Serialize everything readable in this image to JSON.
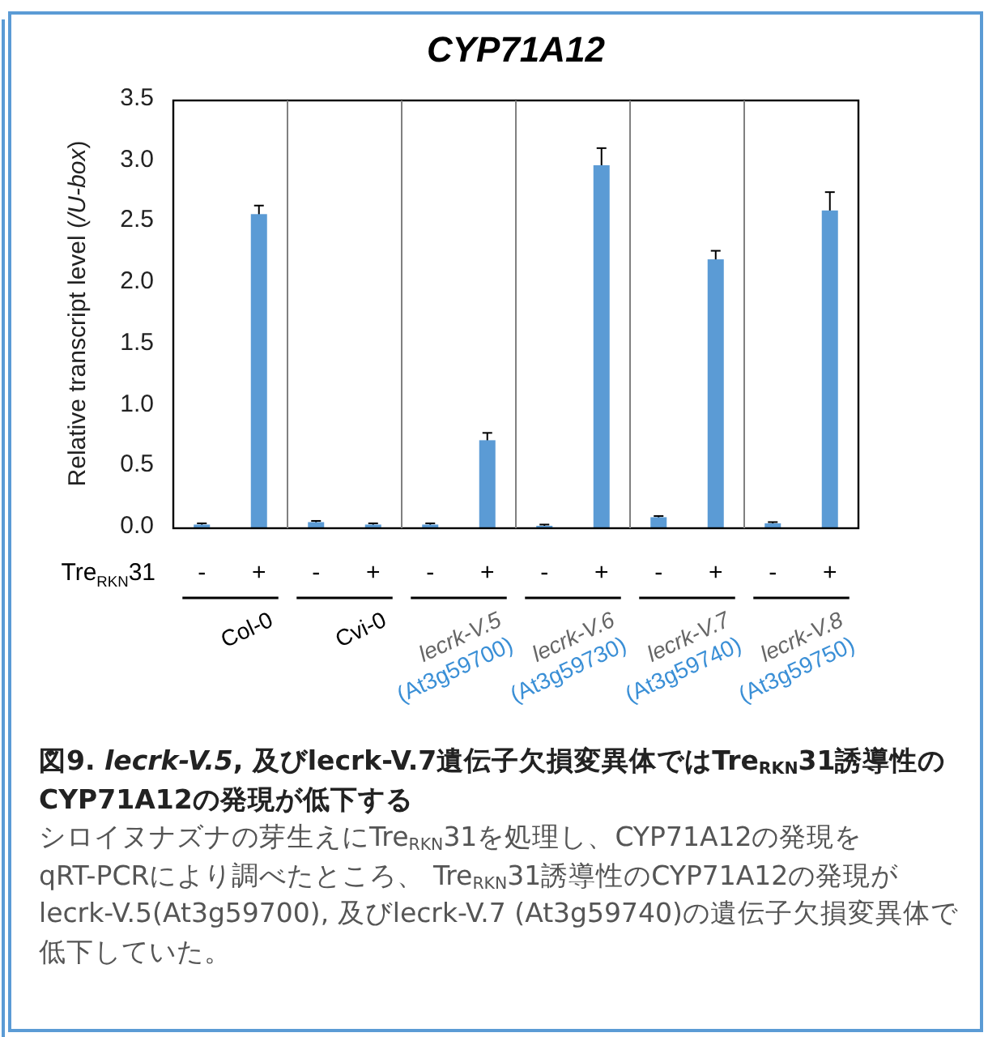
{
  "chart_data": {
    "type": "bar",
    "title": "CYP71A12",
    "ylabel": "Relative transcript level  (*/U-box*)",
    "xlabel": "Tre$_{RKN}$31",
    "categories": [
      "-",
      "+",
      "-",
      "+",
      "-",
      "+",
      "-",
      "+",
      "-",
      "+",
      "-",
      "+"
    ],
    "values": [
      0.03,
      2.57,
      0.05,
      0.03,
      0.03,
      0.72,
      0.02,
      2.97,
      0.09,
      2.2,
      0.04,
      2.6
    ],
    "errors": [
      0.01,
      0.07,
      0.01,
      0.01,
      0.01,
      0.06,
      0.01,
      0.14,
      0.01,
      0.07,
      0.01,
      0.15
    ],
    "color": "#5b9bd5",
    "ylim": [
      0,
      3.5
    ],
    "yticks": [
      {
        "value": 0,
        "label": "0.0"
      },
      0.5,
      {
        "value": 1,
        "label": "1.0"
      },
      1.5,
      {
        "value": 2,
        "label": "2.0"
      },
      2.5,
      {
        "value": 3,
        "label": "3.0"
      },
      3.5
    ],
    "annotations": [
      "Col-0",
      "Cvi-0",
      "*lecrk-V.5* (At3g59700)",
      "*lecrk-V.6* (At3g59730)",
      "*lecrk-V.7* (At3g59740)",
      "*lecrk-V.8* (At3g59750)",
      "図9. *lecrk-V.5*, 及びlecrk-V.7遺伝子欠損変異体ではTre$_{RKN}$31誘導性のCYP71A12の発現が低下する",
      "シロイヌナズナの芽生えにTre$_{RKN}$31を処理し、CYP71A12の発現をqRT-PCRにより調べたところ、 Tre$_{RKN}$31誘導性のCYP71A12の発現がlecrk-V.5(At3g59700), 及びlecrk-V.7 (At3g59740)の遺伝子欠損変異体で低下していた。"
    ]
  }
}
